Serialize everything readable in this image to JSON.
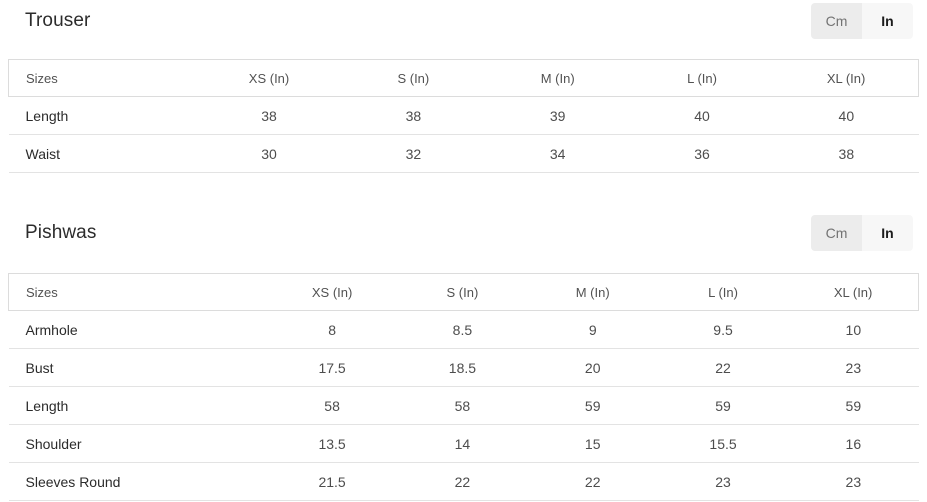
{
  "unit_toggle": {
    "cm_label": "Cm",
    "in_label": "In",
    "selected_unit": "In",
    "selected_bg": "#f7f7f7",
    "unselected_bg": "#ececec"
  },
  "tables": [
    {
      "title": "Trouser",
      "headers": [
        "Sizes",
        "XS (In)",
        "S (In)",
        "M (In)",
        "L (In)",
        "XL (In)"
      ],
      "rows": [
        {
          "label": "Length",
          "values": [
            "38",
            "38",
            "39",
            "40",
            "40"
          ]
        },
        {
          "label": "Waist",
          "values": [
            "30",
            "32",
            "34",
            "36",
            "38"
          ]
        }
      ]
    },
    {
      "title": "Pishwas",
      "headers": [
        "Sizes",
        "XS (In)",
        "S (In)",
        "M (In)",
        "L (In)",
        "XL (In)"
      ],
      "rows": [
        {
          "label": "Armhole",
          "values": [
            "8",
            "8.5",
            "9",
            "9.5",
            "10"
          ]
        },
        {
          "label": "Bust",
          "values": [
            "17.5",
            "18.5",
            "20",
            "22",
            "23"
          ]
        },
        {
          "label": "Length",
          "values": [
            "58",
            "58",
            "59",
            "59",
            "59"
          ]
        },
        {
          "label": "Shoulder",
          "values": [
            "13.5",
            "14",
            "15",
            "15.5",
            "16"
          ]
        },
        {
          "label": "Sleeves Round",
          "values": [
            "21.5",
            "22",
            "22",
            "23",
            "23"
          ]
        }
      ]
    }
  ]
}
